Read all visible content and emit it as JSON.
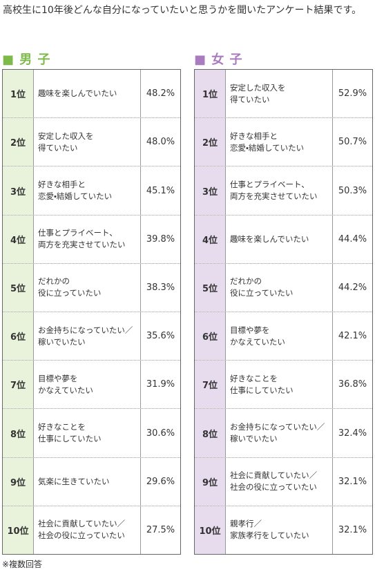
{
  "title": "高校生に10年後どんな自分になっていたいと思うかを聞いたアンケート結果です。",
  "tables": [
    {
      "heading": "■ 男 子",
      "rows": [
        [
          "1位",
          "趣味を楽しんでいたい",
          "48.2%"
        ],
        [
          "2位",
          "安定した収入を\n得ていたい",
          "48.0%"
        ],
        [
          "3位",
          "好きな相手と\n恋愛・結婚していたい",
          "45.1%"
        ],
        [
          "4位",
          "仕事とプライベート、\n両方を充実させていたい",
          "39.8%"
        ],
        [
          "5位",
          "だれかの\n役に立っていたい",
          "38.3%"
        ],
        [
          "6位",
          "お金持ちになっていたい／\n稼いでいたい",
          "35.6%"
        ],
        [
          "7位",
          "目標や夢を\nかなえていたい",
          "31.9%"
        ],
        [
          "8位",
          "好きなことを\n仕事にしていたい",
          "30.6%"
        ],
        [
          "9位",
          "気楽に生きていたい",
          "29.6%"
        ],
        [
          "10位",
          "社会に貢献していたい／\n社会の役に立っていたい",
          "27.5%"
        ]
      ]
    },
    {
      "heading": "■ 女 子",
      "rows": [
        [
          "1位",
          "安定した収入を\n得ていたい",
          "52.9%"
        ],
        [
          "2位",
          "好きな相手と\n恋愛・結婚していたい",
          "50.7%"
        ],
        [
          "3位",
          "仕事とプライベート、\n両方を充実させていたい",
          "50.3%"
        ],
        [
          "4位",
          "趣味を楽しんでいたい",
          "44.4%"
        ],
        [
          "5位",
          "だれかの\n役に立っていたい",
          "44.2%"
        ],
        [
          "6位",
          "目標や夢を\nかなえていたい",
          "42.1%"
        ],
        [
          "7位",
          "好きなことを\n仕事にしていたい",
          "36.8%"
        ],
        [
          "8位",
          "お金持ちになっていたい／\n稼いでいたい",
          "32.4%"
        ],
        [
          "9位",
          "社会に貢献していたい／\n社会の役に立っていたい",
          "32.1%"
        ],
        [
          "10位",
          "親孝行／\n家族孝行をしていたい",
          "32.1%"
        ]
      ]
    }
  ],
  "footnote": "※複数回答"
}
